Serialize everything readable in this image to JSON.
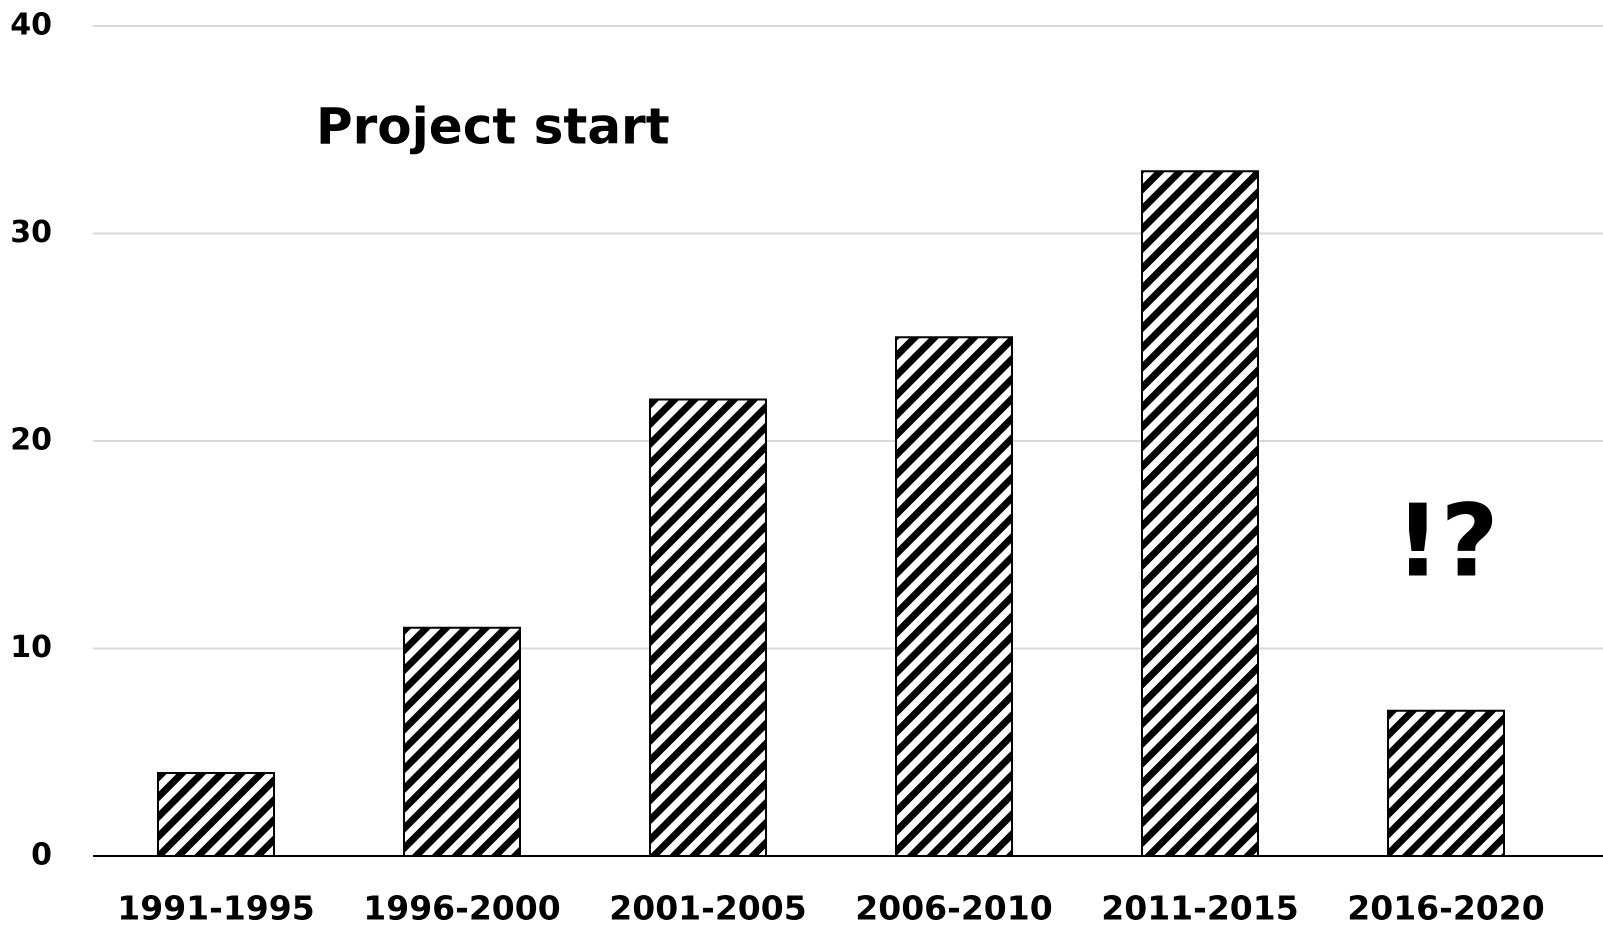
{
  "chart_data": {
    "type": "bar",
    "categories": [
      "1991-1995",
      "1996-2000",
      "2001-2005",
      "2006-2010",
      "2011-2015",
      "2016-2020"
    ],
    "values": [
      4,
      11,
      22,
      25,
      33,
      7
    ],
    "color": "#000000",
    "ylim": [
      0,
      40
    ],
    "yticks": [
      0,
      10,
      20,
      30,
      40
    ],
    "grid": true,
    "annotations": [
      "Project start",
      "!?"
    ]
  }
}
